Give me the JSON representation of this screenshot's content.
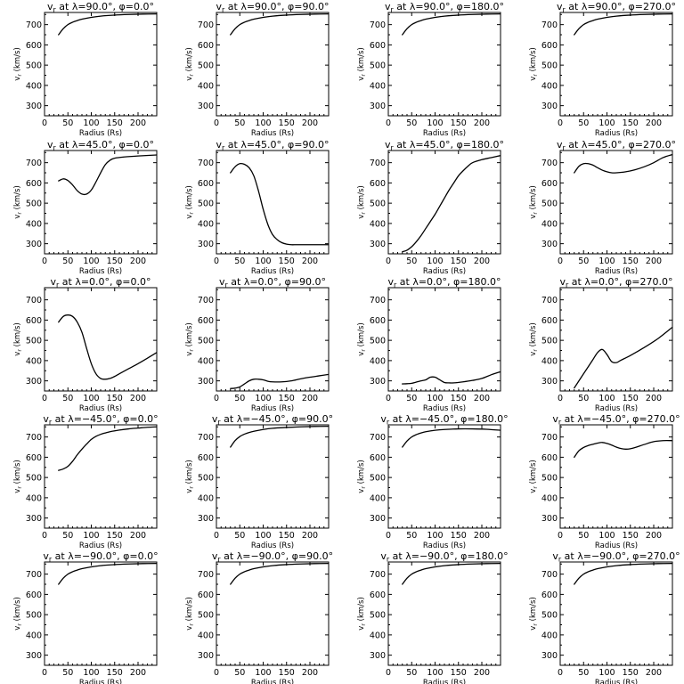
{
  "chart_data": {
    "type": "line",
    "layout": {
      "rows": 5,
      "cols": 4
    },
    "xlabel": "Radius (Rs)",
    "ylabel": "v_r (km/s)",
    "xlim": [
      0,
      240
    ],
    "ylim": [
      250,
      760
    ],
    "xticks": [
      0,
      50,
      100,
      150,
      200
    ],
    "yticks": [
      300,
      400,
      500,
      600,
      700
    ],
    "panels": [
      {
        "title": "v_r at λ=90.0°, φ=0.0°",
        "x": [
          30,
          40,
          50,
          60,
          70,
          80,
          100,
          120,
          150,
          180,
          210,
          240
        ],
        "y": [
          650,
          680,
          700,
          712,
          720,
          727,
          736,
          742,
          747,
          750,
          752,
          753
        ]
      },
      {
        "title": "v_r at λ=90.0°, φ=90.0°",
        "x": [
          30,
          40,
          50,
          60,
          70,
          80,
          100,
          120,
          150,
          180,
          210,
          240
        ],
        "y": [
          650,
          680,
          700,
          712,
          720,
          727,
          736,
          742,
          747,
          750,
          752,
          753
        ]
      },
      {
        "title": "v_r at λ=90.0°, φ=180.0°",
        "x": [
          30,
          40,
          50,
          60,
          70,
          80,
          100,
          120,
          150,
          180,
          210,
          240
        ],
        "y": [
          650,
          680,
          700,
          712,
          720,
          727,
          736,
          742,
          747,
          750,
          752,
          753
        ]
      },
      {
        "title": "v_r at λ=90.0°, φ=270.0°",
        "x": [
          30,
          40,
          50,
          60,
          70,
          80,
          100,
          120,
          150,
          180,
          210,
          240
        ],
        "y": [
          650,
          680,
          700,
          712,
          720,
          727,
          736,
          742,
          747,
          750,
          752,
          753
        ]
      },
      {
        "title": "v_r at λ=45.0°, φ=0.0°",
        "x": [
          30,
          40,
          50,
          60,
          70,
          80,
          90,
          100,
          110,
          120,
          130,
          140,
          150,
          170,
          200,
          240
        ],
        "y": [
          610,
          620,
          612,
          590,
          562,
          545,
          545,
          565,
          605,
          650,
          690,
          712,
          722,
          728,
          733,
          738
        ]
      },
      {
        "title": "v_r at λ=45.0°, φ=90.0°",
        "x": [
          30,
          40,
          50,
          60,
          70,
          80,
          90,
          100,
          110,
          120,
          130,
          140,
          150,
          160,
          170,
          180,
          200,
          240
        ],
        "y": [
          650,
          680,
          695,
          692,
          675,
          635,
          560,
          470,
          395,
          345,
          320,
          305,
          298,
          295,
          295,
          295,
          295,
          295
        ]
      },
      {
        "title": "v_r at λ=45.0°, φ=180.0°",
        "x": [
          30,
          40,
          50,
          60,
          70,
          80,
          90,
          100,
          110,
          120,
          130,
          140,
          150,
          160,
          170,
          180,
          200,
          220,
          240
        ],
        "y": [
          260,
          268,
          285,
          310,
          340,
          375,
          410,
          445,
          485,
          525,
          565,
          600,
          635,
          660,
          682,
          700,
          715,
          725,
          735
        ]
      },
      {
        "title": "v_r at λ=45.0°, φ=270.0°",
        "x": [
          30,
          40,
          50,
          60,
          70,
          80,
          90,
          100,
          110,
          120,
          140,
          160,
          180,
          200,
          220,
          240
        ],
        "y": [
          650,
          682,
          695,
          695,
          688,
          675,
          663,
          655,
          650,
          650,
          655,
          665,
          680,
          700,
          725,
          740
        ]
      },
      {
        "title": "v_r at λ=0.0°, φ=0.0°",
        "x": [
          30,
          40,
          50,
          60,
          70,
          80,
          90,
          100,
          110,
          120,
          130,
          140,
          150,
          160,
          180,
          200,
          220,
          240
        ],
        "y": [
          590,
          618,
          625,
          618,
          590,
          540,
          460,
          385,
          335,
          312,
          308,
          312,
          322,
          335,
          360,
          385,
          412,
          440
        ]
      },
      {
        "title": "v_r at λ=0.0°, φ=90.0°",
        "x": [
          30,
          40,
          50,
          60,
          70,
          80,
          90,
          100,
          110,
          120,
          140,
          160,
          180,
          200,
          220,
          240
        ],
        "y": [
          262,
          264,
          270,
          285,
          300,
          308,
          308,
          305,
          298,
          295,
          295,
          300,
          310,
          318,
          325,
          332
        ]
      },
      {
        "title": "v_r at λ=0.0°, φ=180.0°",
        "x": [
          30,
          40,
          50,
          60,
          70,
          80,
          90,
          100,
          110,
          120,
          130,
          140,
          160,
          180,
          200,
          220,
          240
        ],
        "y": [
          285,
          286,
          288,
          294,
          300,
          305,
          318,
          318,
          305,
          292,
          290,
          290,
          295,
          302,
          312,
          330,
          345
        ]
      },
      {
        "title": "v_r at λ=0.0°, φ=270.0°",
        "x": [
          30,
          40,
          50,
          60,
          70,
          80,
          90,
          100,
          110,
          120,
          130,
          150,
          180,
          210,
          240
        ],
        "y": [
          265,
          300,
          335,
          370,
          405,
          440,
          455,
          430,
          395,
          390,
          402,
          425,
          465,
          510,
          565
        ]
      },
      {
        "title": "v_r at λ=−45.0°, φ=0.0°",
        "x": [
          30,
          40,
          50,
          60,
          70,
          80,
          90,
          100,
          110,
          120,
          130,
          140,
          160,
          180,
          200,
          220,
          240
        ],
        "y": [
          535,
          542,
          555,
          580,
          612,
          640,
          665,
          688,
          703,
          713,
          720,
          726,
          734,
          740,
          744,
          748,
          750
        ]
      },
      {
        "title": "v_r at λ=−45.0°, φ=90.0°",
        "x": [
          30,
          40,
          50,
          60,
          70,
          80,
          100,
          120,
          150,
          180,
          210,
          240
        ],
        "y": [
          650,
          682,
          702,
          714,
          722,
          728,
          737,
          743,
          747,
          750,
          752,
          753
        ]
      },
      {
        "title": "v_r at λ=−45.0°, φ=180.0°",
        "x": [
          30,
          40,
          50,
          60,
          70,
          80,
          100,
          120,
          150,
          180,
          210,
          240
        ],
        "y": [
          650,
          680,
          700,
          712,
          720,
          726,
          733,
          737,
          740,
          740,
          738,
          733
        ]
      },
      {
        "title": "v_r at λ=−45.0°, φ=270.0°",
        "x": [
          30,
          40,
          50,
          60,
          70,
          80,
          90,
          100,
          110,
          120,
          130,
          140,
          150,
          160,
          180,
          200,
          220,
          240
        ],
        "y": [
          600,
          632,
          648,
          658,
          664,
          670,
          673,
          668,
          660,
          650,
          643,
          640,
          642,
          648,
          663,
          677,
          682,
          682
        ]
      },
      {
        "title": "v_r at λ=−90.0°, φ=0.0°",
        "x": [
          30,
          40,
          50,
          60,
          70,
          80,
          100,
          120,
          150,
          180,
          210,
          240
        ],
        "y": [
          650,
          680,
          700,
          712,
          720,
          727,
          736,
          742,
          747,
          750,
          752,
          753
        ]
      },
      {
        "title": "v_r at λ=−90.0°, φ=90.0°",
        "x": [
          30,
          40,
          50,
          60,
          70,
          80,
          100,
          120,
          150,
          180,
          210,
          240
        ],
        "y": [
          650,
          680,
          700,
          712,
          720,
          727,
          736,
          742,
          747,
          750,
          752,
          753
        ]
      },
      {
        "title": "v_r at λ=−90.0°, φ=180.0°",
        "x": [
          30,
          40,
          50,
          60,
          70,
          80,
          100,
          120,
          150,
          180,
          210,
          240
        ],
        "y": [
          650,
          680,
          700,
          712,
          720,
          727,
          736,
          742,
          747,
          750,
          752,
          753
        ]
      },
      {
        "title": "v_r at λ=−90.0°, φ=270.0°",
        "x": [
          30,
          40,
          50,
          60,
          70,
          80,
          100,
          120,
          150,
          180,
          210,
          240
        ],
        "y": [
          650,
          680,
          700,
          712,
          720,
          727,
          736,
          742,
          747,
          750,
          752,
          753
        ]
      }
    ]
  }
}
